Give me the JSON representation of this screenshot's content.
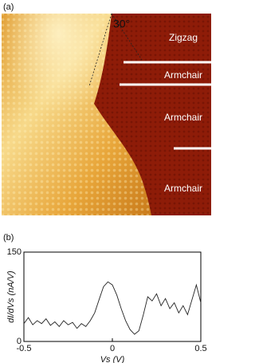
{
  "panel_a": {
    "label": "(a)",
    "angle": "30°",
    "edges": [
      "Zigzag",
      "Armchair",
      "Armchair",
      "Armchair"
    ]
  },
  "chart_data": {
    "type": "line",
    "label": "(b)",
    "xlabel": "Vs (V)",
    "ylabel": "dI/dVs (nA/V)",
    "x": [
      -0.5,
      -0.475,
      -0.45,
      -0.425,
      -0.4,
      -0.375,
      -0.35,
      -0.325,
      -0.3,
      -0.275,
      -0.25,
      -0.225,
      -0.2,
      -0.175,
      -0.15,
      -0.125,
      -0.1,
      -0.075,
      -0.05,
      -0.025,
      0,
      0.025,
      0.05,
      0.075,
      0.1,
      0.125,
      0.15,
      0.175,
      0.2,
      0.225,
      0.25,
      0.275,
      0.3,
      0.325,
      0.35,
      0.375,
      0.4,
      0.425,
      0.45,
      0.475,
      0.5
    ],
    "values": [
      30,
      40,
      28,
      35,
      30,
      38,
      27,
      33,
      25,
      35,
      28,
      32,
      22,
      30,
      25,
      35,
      48,
      70,
      92,
      100,
      95,
      78,
      55,
      35,
      20,
      12,
      18,
      45,
      75,
      68,
      80,
      60,
      72,
      55,
      65,
      48,
      60,
      45,
      70,
      95,
      65
    ],
    "color": "#222222",
    "xlim": [
      -0.5,
      0.5
    ],
    "xticks": [
      -0.5,
      0,
      0.5
    ],
    "ylim": [
      0,
      150
    ],
    "yticks": [
      0,
      150
    ]
  }
}
